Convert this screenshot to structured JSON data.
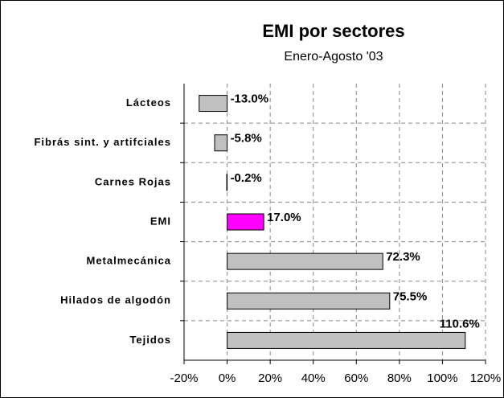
{
  "chart_data": {
    "type": "bar",
    "orientation": "horizontal",
    "title": "EMI por sectores",
    "subtitle": "Enero-Agosto '03",
    "categories": [
      "Lácteos",
      "Fibrás sint. y artifciales",
      "Carnes Rojas",
      "EMI",
      "Metalmecánica",
      "Hilados de algodón",
      "Tejidos"
    ],
    "values": [
      -13.0,
      -5.8,
      -0.2,
      17.0,
      72.3,
      75.5,
      110.6
    ],
    "value_labels": [
      "-13.0%",
      "-5.8%",
      "-0.2%",
      "17.0%",
      "72.3%",
      "75.5%",
      "110.6%"
    ],
    "colors": [
      "#c0c0c0",
      "#c0c0c0",
      "#c0c0c0",
      "#ff00ff",
      "#c0c0c0",
      "#c0c0c0",
      "#c0c0c0"
    ],
    "xlim": [
      -20,
      120
    ],
    "xticks": [
      {
        "value": -20,
        "label": "-20%"
      },
      {
        "value": 0,
        "label": "0%"
      },
      {
        "value": 20,
        "label": "20%"
      },
      {
        "value": 40,
        "label": "40%"
      },
      {
        "value": 60,
        "label": "60%"
      },
      {
        "value": 80,
        "label": "80%"
      },
      {
        "value": 100,
        "label": "100%"
      },
      {
        "value": 120,
        "label": "120%"
      }
    ],
    "grid": true
  }
}
